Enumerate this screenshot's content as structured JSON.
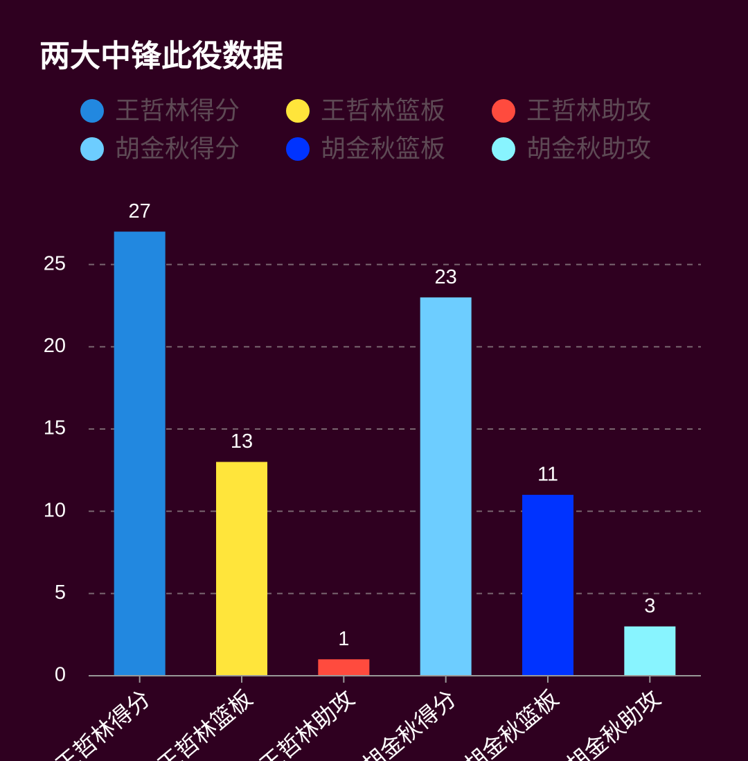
{
  "chart_data": {
    "type": "bar",
    "title": "两大中锋此役数据",
    "categories": [
      "王哲林得分",
      "王哲林篮板",
      "王哲林助攻",
      "胡金秋得分",
      "胡金秋篮板",
      "胡金秋助攻"
    ],
    "values": [
      27,
      13,
      1,
      23,
      11,
      3
    ],
    "colors": [
      "#2288e0",
      "#ffe53b",
      "#ff4b3e",
      "#6dcdff",
      "#0033ff",
      "#88f4ff"
    ],
    "ylim": [
      0,
      30
    ],
    "yticks": [
      0,
      5,
      10,
      15,
      20,
      25
    ],
    "grid": true
  }
}
